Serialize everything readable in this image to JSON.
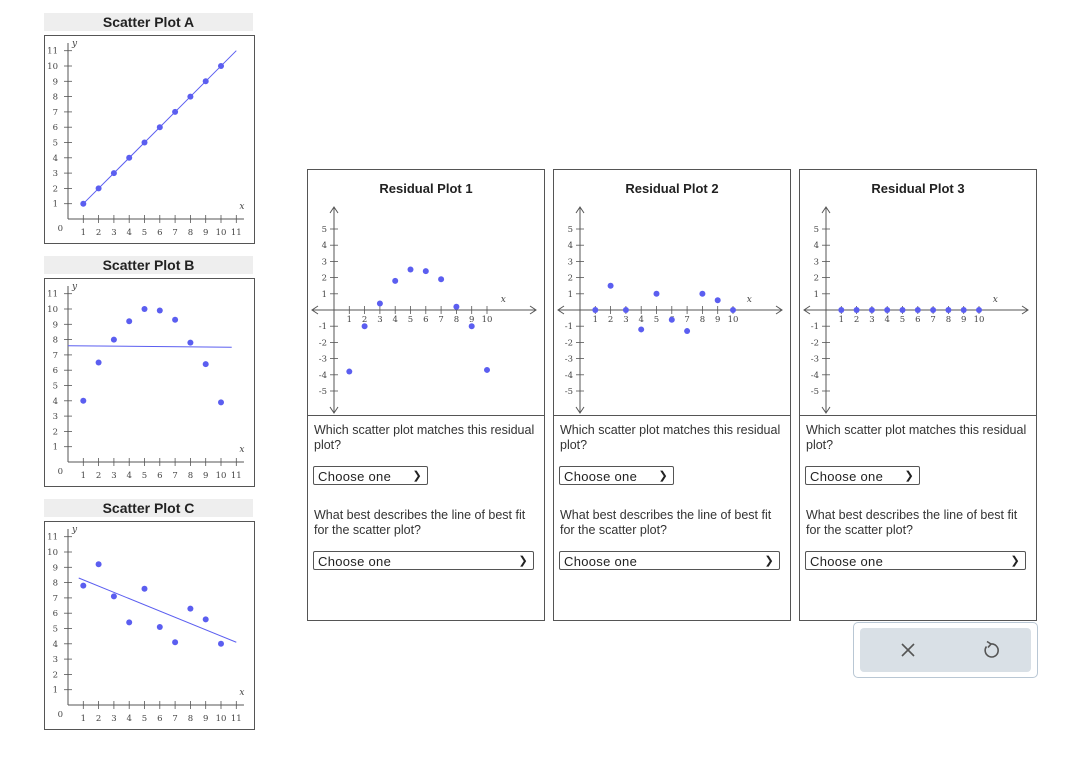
{
  "scatter_plots": [
    {
      "title": "Scatter Plot A",
      "y_ticks": [
        "1",
        "2",
        "3",
        "4",
        "5",
        "6",
        "7",
        "8",
        "9",
        "10",
        "11"
      ],
      "x_ticks": [
        "1",
        "2",
        "3",
        "4",
        "5",
        "6",
        "7",
        "8",
        "9",
        "10",
        "11"
      ],
      "origin": "0",
      "x_axis_letter": "x",
      "y_axis_letter": "y",
      "points": [
        [
          1,
          1
        ],
        [
          2,
          2
        ],
        [
          3,
          3
        ],
        [
          4,
          4
        ],
        [
          5,
          5
        ],
        [
          6,
          6
        ],
        [
          7,
          7
        ],
        [
          8,
          8
        ],
        [
          9,
          9
        ],
        [
          10,
          10
        ]
      ],
      "line": [
        [
          1,
          1
        ],
        [
          11,
          11
        ]
      ]
    },
    {
      "title": "Scatter Plot B",
      "y_ticks": [
        "1",
        "2",
        "3",
        "4",
        "5",
        "6",
        "7",
        "8",
        "9",
        "10",
        "11"
      ],
      "x_ticks": [
        "1",
        "2",
        "3",
        "4",
        "5",
        "6",
        "7",
        "8",
        "9",
        "10",
        "11"
      ],
      "origin": "0",
      "x_axis_letter": "x",
      "y_axis_letter": "y",
      "points": [
        [
          1,
          4
        ],
        [
          2,
          6.5
        ],
        [
          3,
          8
        ],
        [
          4,
          9.2
        ],
        [
          5,
          10
        ],
        [
          6,
          9.9
        ],
        [
          7,
          9.3
        ],
        [
          8,
          7.8
        ],
        [
          9,
          6.4
        ],
        [
          10,
          3.9
        ]
      ],
      "line": [
        [
          0,
          7.6
        ],
        [
          10.7,
          7.5
        ]
      ]
    },
    {
      "title": "Scatter Plot C",
      "y_ticks": [
        "1",
        "2",
        "3",
        "4",
        "5",
        "6",
        "7",
        "8",
        "9",
        "10",
        "11"
      ],
      "x_ticks": [
        "1",
        "2",
        "3",
        "4",
        "5",
        "6",
        "7",
        "8",
        "9",
        "10",
        "11"
      ],
      "origin": "0",
      "x_axis_letter": "x",
      "y_axis_letter": "y",
      "points": [
        [
          1,
          7.8
        ],
        [
          2,
          9.2
        ],
        [
          3,
          7.1
        ],
        [
          4,
          5.4
        ],
        [
          5,
          7.6
        ],
        [
          6,
          5.1
        ],
        [
          7,
          4.1
        ],
        [
          8,
          6.3
        ],
        [
          9,
          5.6
        ],
        [
          10,
          4
        ]
      ],
      "line": [
        [
          0.7,
          8.3
        ],
        [
          11,
          4.1
        ]
      ]
    }
  ],
  "residual_plots": [
    {
      "title": "Residual Plot 1",
      "points": [
        [
          1,
          -3.8
        ],
        [
          2,
          -1
        ],
        [
          3,
          0.4
        ],
        [
          4,
          1.8
        ],
        [
          5,
          2.5
        ],
        [
          6,
          2.4
        ],
        [
          7,
          1.9
        ],
        [
          8,
          0.2
        ],
        [
          9,
          -1
        ],
        [
          10,
          -3.7
        ]
      ],
      "q1": "Which scatter plot matches this residual plot?",
      "q2": "What best describes the line of best fit for the scatter plot?",
      "select1": "Choose one",
      "select2": "Choose one"
    },
    {
      "title": "Residual Plot 2",
      "points": [
        [
          1,
          0
        ],
        [
          2,
          1.5
        ],
        [
          3,
          0
        ],
        [
          4,
          -1.2
        ],
        [
          5,
          1
        ],
        [
          6,
          -0.6
        ],
        [
          7,
          -1.3
        ],
        [
          8,
          1
        ],
        [
          9,
          0.6
        ],
        [
          10,
          0
        ]
      ],
      "q1": "Which scatter plot matches this residual plot?",
      "q2": "What best describes the line of best fit for the scatter plot?",
      "select1": "Choose one",
      "select2": "Choose one"
    },
    {
      "title": "Residual Plot 3",
      "points": [
        [
          1,
          0
        ],
        [
          2,
          0
        ],
        [
          3,
          0
        ],
        [
          4,
          0
        ],
        [
          5,
          0
        ],
        [
          6,
          0
        ],
        [
          7,
          0
        ],
        [
          8,
          0
        ],
        [
          9,
          0
        ],
        [
          10,
          0
        ]
      ],
      "q1": "Which scatter plot matches this residual plot?",
      "q2": "What best describes the line of best fit for the scatter plot?",
      "select1": "Choose one",
      "select2": "Choose one"
    }
  ],
  "residual_axes": {
    "x_ticks": [
      "1",
      "2",
      "3",
      "4",
      "5",
      "6",
      "7",
      "8",
      "9",
      "10"
    ],
    "y_ticks": [
      "-5",
      "-4",
      "-3",
      "-2",
      "-1",
      "1",
      "2",
      "3",
      "4",
      "5"
    ],
    "x_axis_letter": "x"
  },
  "colors": {
    "point": "#5b5ef0",
    "line": "#5b5ef0",
    "axis": "#555555"
  },
  "actions": {
    "clear_icon": "close-icon",
    "reset_icon": "undo-icon"
  }
}
